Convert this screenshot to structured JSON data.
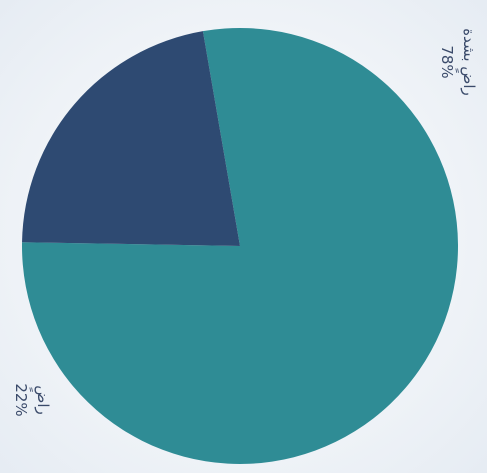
{
  "chart_data": {
    "type": "pie",
    "title": "",
    "slices": [
      {
        "label": "راضٍ بشدة",
        "value": 78,
        "value_label": "78%",
        "color": "#2f8c95"
      },
      {
        "label": "راضٍ",
        "value": 22,
        "value_label": "22%",
        "color": "#2e4a72"
      }
    ]
  }
}
